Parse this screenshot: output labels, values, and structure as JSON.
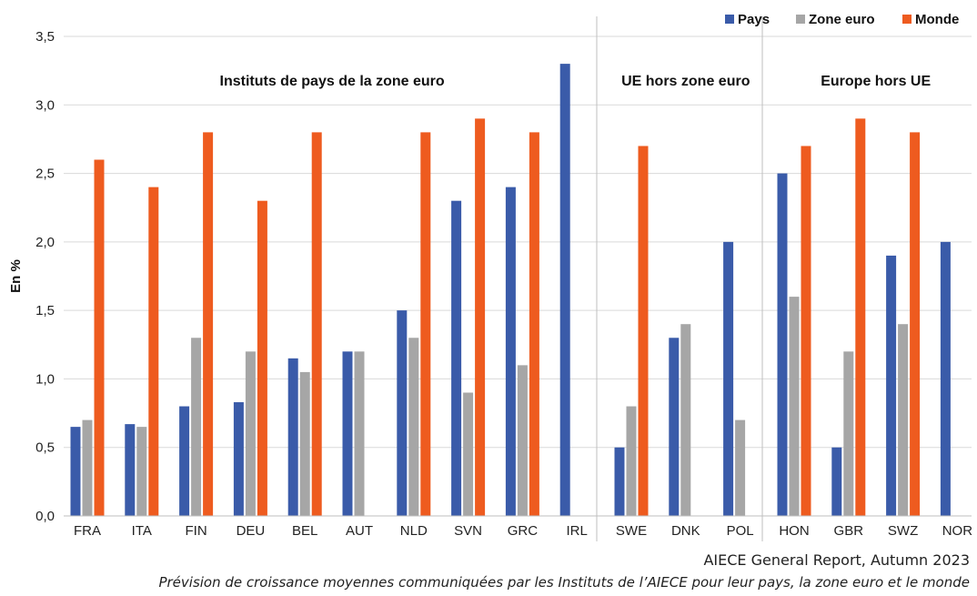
{
  "chart_data": {
    "type": "bar",
    "ylabel": "En %",
    "ylim": [
      0,
      3.5
    ],
    "yticks": [
      "0,0",
      "0,5",
      "1,0",
      "1,5",
      "2,0",
      "2,5",
      "3,0",
      "3,5"
    ],
    "grid": true,
    "legend_position": "top-right",
    "categories": [
      "FRA",
      "ITA",
      "FIN",
      "DEU",
      "BEL",
      "AUT",
      "NLD",
      "SVN",
      "GRC",
      "IRL",
      "SWE",
      "DNK",
      "POL",
      "HON",
      "GBR",
      "SWZ",
      "NOR"
    ],
    "series": [
      {
        "name": "Pays",
        "color": "#3a5ba9",
        "values": [
          0.65,
          0.67,
          0.8,
          0.83,
          1.15,
          1.2,
          1.5,
          2.3,
          2.4,
          3.3,
          0.5,
          1.3,
          2.0,
          2.5,
          0.5,
          1.9,
          2.0
        ]
      },
      {
        "name": "Zone euro",
        "color": "#a6a6a6",
        "values": [
          0.7,
          0.65,
          1.3,
          1.2,
          1.05,
          1.2,
          1.3,
          0.9,
          1.1,
          null,
          0.8,
          1.4,
          0.7,
          1.6,
          1.2,
          1.4,
          null
        ]
      },
      {
        "name": "Monde",
        "color": "#ee5b1f",
        "values": [
          2.6,
          2.4,
          2.8,
          2.3,
          2.8,
          null,
          2.8,
          2.9,
          2.8,
          null,
          2.7,
          null,
          null,
          2.7,
          2.9,
          2.8,
          null
        ]
      }
    ],
    "groups": [
      {
        "label": "Instituts de pays de la zone euro",
        "from": 0,
        "to": 9
      },
      {
        "label": "UE hors zone euro",
        "from": 10,
        "to": 12
      },
      {
        "label": "Europe hors UE",
        "from": 13,
        "to": 16
      }
    ]
  },
  "source": "AIECE General Report, Autumn 2023",
  "caption": "Prévision de croissance moyennes communiquées par les Instituts de l’AIECE pour leur pays, la zone euro et le monde"
}
